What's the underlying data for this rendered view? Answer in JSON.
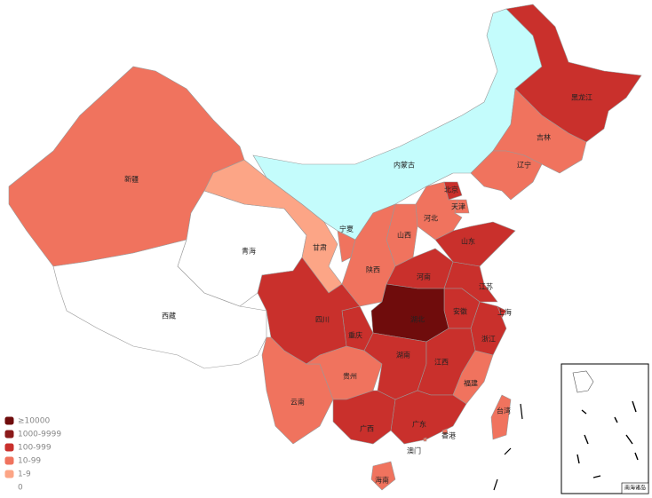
{
  "legend": [
    {
      "label": "≥10000",
      "color": "#6f0c0c"
    },
    {
      "label": "1000-9999",
      "color": "#8b1a1a"
    },
    {
      "label": "100-999",
      "color": "#c9302c"
    },
    {
      "label": "10-99",
      "color": "#f0735e"
    },
    {
      "label": "1-9",
      "color": "#fca586"
    },
    {
      "label": "0",
      "color": "#ffffff"
    }
  ],
  "regions": [
    {
      "name": "新疆",
      "color": "#f0735e"
    },
    {
      "name": "西藏",
      "color": "#ffffff"
    },
    {
      "name": "青海",
      "color": "#ffffff"
    },
    {
      "name": "甘肃",
      "color": "#fca586"
    },
    {
      "name": "内蒙古",
      "color": "#c4fcfc"
    },
    {
      "name": "黑龙江",
      "color": "#c9302c"
    },
    {
      "name": "吉林",
      "color": "#f0735e"
    },
    {
      "name": "辽宁",
      "color": "#f0735e"
    },
    {
      "name": "河北",
      "color": "#f0735e"
    },
    {
      "name": "北京",
      "color": "#c9302c"
    },
    {
      "name": "天津",
      "color": "#f0735e"
    },
    {
      "name": "山西",
      "color": "#f0735e"
    },
    {
      "name": "宁夏",
      "color": "#f0735e"
    },
    {
      "name": "陕西",
      "color": "#f0735e"
    },
    {
      "name": "河南",
      "color": "#c9302c"
    },
    {
      "name": "山东",
      "color": "#c9302c"
    },
    {
      "name": "江苏",
      "color": "#c9302c"
    },
    {
      "name": "安徽",
      "color": "#c9302c"
    },
    {
      "name": "上海",
      "color": "#c9302c"
    },
    {
      "name": "浙江",
      "color": "#c9302c"
    },
    {
      "name": "湖北",
      "color": "#6f0c0c"
    },
    {
      "name": "重庆",
      "color": "#c9302c"
    },
    {
      "name": "四川",
      "color": "#c9302c"
    },
    {
      "name": "云南",
      "color": "#f0735e"
    },
    {
      "name": "贵州",
      "color": "#f0735e"
    },
    {
      "name": "湖南",
      "color": "#c9302c"
    },
    {
      "name": "江西",
      "color": "#c9302c"
    },
    {
      "name": "福建",
      "color": "#f0735e"
    },
    {
      "name": "广东",
      "color": "#c9302c"
    },
    {
      "name": "广西",
      "color": "#c9302c"
    },
    {
      "name": "海南",
      "color": "#f0735e"
    },
    {
      "name": "台湾",
      "color": "#f0735e"
    },
    {
      "name": "香港",
      "color": "#f0735e"
    },
    {
      "name": "澳门",
      "color": "#f0735e"
    }
  ],
  "inset_label": "南海诸岛"
}
